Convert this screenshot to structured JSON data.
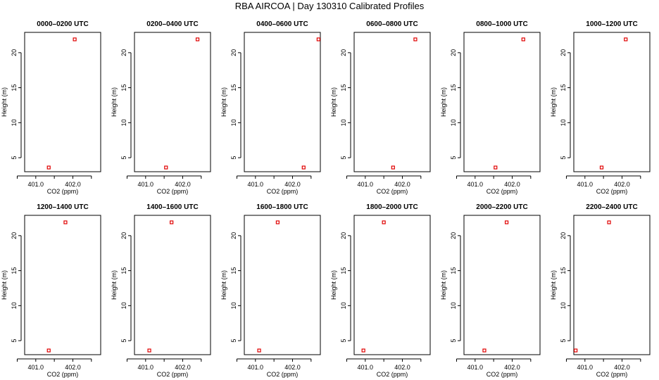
{
  "figure": {
    "title": "RBA AIRCOA |  Day 130310  Calibrated Profiles"
  },
  "chart_data": [
    {
      "type": "scatter",
      "title": "0000–0200 UTC",
      "xlabel": "CO2 (ppm)",
      "ylabel": "Height (m)",
      "x_ticks": [
        401.0,
        402.0
      ],
      "y_ticks": [
        5,
        10,
        15,
        20
      ],
      "xlim": [
        400.7,
        402.75
      ],
      "ylim": [
        3.0,
        22.9
      ],
      "series": [
        {
          "color": "#e00000",
          "points": [
            {
              "x": 401.35,
              "y": 3.6
            },
            {
              "x": 402.05,
              "y": 21.9
            }
          ]
        }
      ]
    },
    {
      "type": "scatter",
      "title": "0200–0400 UTC",
      "xlabel": "CO2 (ppm)",
      "ylabel": "Height (m)",
      "x_ticks": [
        401.0,
        402.0
      ],
      "y_ticks": [
        5,
        10,
        15,
        20
      ],
      "xlim": [
        400.7,
        402.75
      ],
      "ylim": [
        3.0,
        22.9
      ],
      "series": [
        {
          "color": "#e00000",
          "points": [
            {
              "x": 401.55,
              "y": 3.6
            },
            {
              "x": 402.4,
              "y": 21.9
            }
          ]
        }
      ]
    },
    {
      "type": "scatter",
      "title": "0400–0600 UTC",
      "xlabel": "CO2 (ppm)",
      "ylabel": "Height (m)",
      "x_ticks": [
        401.0,
        402.0
      ],
      "y_ticks": [
        5,
        10,
        15,
        20
      ],
      "xlim": [
        400.7,
        402.75
      ],
      "ylim": [
        3.0,
        22.9
      ],
      "series": [
        {
          "color": "#e00000",
          "points": [
            {
              "x": 402.3,
              "y": 3.6
            },
            {
              "x": 402.7,
              "y": 21.9
            }
          ]
        }
      ]
    },
    {
      "type": "scatter",
      "title": "0600–0800 UTC",
      "xlabel": "CO2 (ppm)",
      "ylabel": "Height (m)",
      "x_ticks": [
        401.0,
        402.0
      ],
      "y_ticks": [
        5,
        10,
        15,
        20
      ],
      "xlim": [
        400.7,
        402.75
      ],
      "ylim": [
        3.0,
        22.9
      ],
      "series": [
        {
          "color": "#e00000",
          "points": [
            {
              "x": 401.75,
              "y": 3.6
            },
            {
              "x": 402.35,
              "y": 21.9
            }
          ]
        }
      ]
    },
    {
      "type": "scatter",
      "title": "0800–1000 UTC",
      "xlabel": "CO2 (ppm)",
      "ylabel": "Height (m)",
      "x_ticks": [
        401.0,
        402.0
      ],
      "y_ticks": [
        5,
        10,
        15,
        20
      ],
      "xlim": [
        400.7,
        402.75
      ],
      "ylim": [
        3.0,
        22.9
      ],
      "series": [
        {
          "color": "#e00000",
          "points": [
            {
              "x": 401.55,
              "y": 3.6
            },
            {
              "x": 402.3,
              "y": 21.9
            }
          ]
        }
      ]
    },
    {
      "type": "scatter",
      "title": "1000–1200 UTC",
      "xlabel": "CO2 (ppm)",
      "ylabel": "Height (m)",
      "x_ticks": [
        401.0,
        402.0
      ],
      "y_ticks": [
        5,
        10,
        15,
        20
      ],
      "xlim": [
        400.7,
        402.75
      ],
      "ylim": [
        3.0,
        22.9
      ],
      "series": [
        {
          "color": "#e00000",
          "points": [
            {
              "x": 401.45,
              "y": 3.6
            },
            {
              "x": 402.1,
              "y": 21.9
            }
          ]
        }
      ]
    },
    {
      "type": "scatter",
      "title": "1200–1400 UTC",
      "xlabel": "CO2 (ppm)",
      "ylabel": "Height (m)",
      "x_ticks": [
        401.0,
        402.0
      ],
      "y_ticks": [
        5,
        10,
        15,
        20
      ],
      "xlim": [
        400.7,
        402.75
      ],
      "ylim": [
        3.0,
        22.9
      ],
      "series": [
        {
          "color": "#e00000",
          "points": [
            {
              "x": 401.35,
              "y": 3.6
            },
            {
              "x": 401.8,
              "y": 21.9
            }
          ]
        }
      ]
    },
    {
      "type": "scatter",
      "title": "1400–1600 UTC",
      "xlabel": "CO2 (ppm)",
      "ylabel": "Height (m)",
      "x_ticks": [
        401.0,
        402.0
      ],
      "y_ticks": [
        5,
        10,
        15,
        20
      ],
      "xlim": [
        400.7,
        402.75
      ],
      "ylim": [
        3.0,
        22.9
      ],
      "series": [
        {
          "color": "#e00000",
          "points": [
            {
              "x": 401.1,
              "y": 3.6
            },
            {
              "x": 401.7,
              "y": 21.9
            }
          ]
        }
      ]
    },
    {
      "type": "scatter",
      "title": "1600–1800 UTC",
      "xlabel": "CO2 (ppm)",
      "ylabel": "Height (m)",
      "x_ticks": [
        401.0,
        402.0
      ],
      "y_ticks": [
        5,
        10,
        15,
        20
      ],
      "xlim": [
        400.7,
        402.75
      ],
      "ylim": [
        3.0,
        22.9
      ],
      "series": [
        {
          "color": "#e00000",
          "points": [
            {
              "x": 401.1,
              "y": 3.6
            },
            {
              "x": 401.6,
              "y": 21.9
            }
          ]
        }
      ]
    },
    {
      "type": "scatter",
      "title": "1800–2000 UTC",
      "xlabel": "CO2 (ppm)",
      "ylabel": "Height (m)",
      "x_ticks": [
        401.0,
        402.0
      ],
      "y_ticks": [
        5,
        10,
        15,
        20
      ],
      "xlim": [
        400.7,
        402.75
      ],
      "ylim": [
        3.0,
        22.9
      ],
      "series": [
        {
          "color": "#e00000",
          "points": [
            {
              "x": 400.95,
              "y": 3.6
            },
            {
              "x": 401.5,
              "y": 21.9
            }
          ]
        }
      ]
    },
    {
      "type": "scatter",
      "title": "2000–2200 UTC",
      "xlabel": "CO2 (ppm)",
      "ylabel": "Height (m)",
      "x_ticks": [
        401.0,
        402.0
      ],
      "y_ticks": [
        5,
        10,
        15,
        20
      ],
      "xlim": [
        400.7,
        402.75
      ],
      "ylim": [
        3.0,
        22.9
      ],
      "series": [
        {
          "color": "#e00000",
          "points": [
            {
              "x": 401.25,
              "y": 3.6
            },
            {
              "x": 401.85,
              "y": 21.9
            }
          ]
        }
      ]
    },
    {
      "type": "scatter",
      "title": "2200–2400 UTC",
      "xlabel": "CO2 (ppm)",
      "ylabel": "Height (m)",
      "x_ticks": [
        401.0,
        402.0
      ],
      "y_ticks": [
        5,
        10,
        15,
        20
      ],
      "xlim": [
        400.7,
        402.75
      ],
      "ylim": [
        3.0,
        22.9
      ],
      "series": [
        {
          "color": "#e00000",
          "points": [
            {
              "x": 400.75,
              "y": 3.6
            },
            {
              "x": 401.65,
              "y": 21.9
            }
          ]
        }
      ]
    }
  ]
}
